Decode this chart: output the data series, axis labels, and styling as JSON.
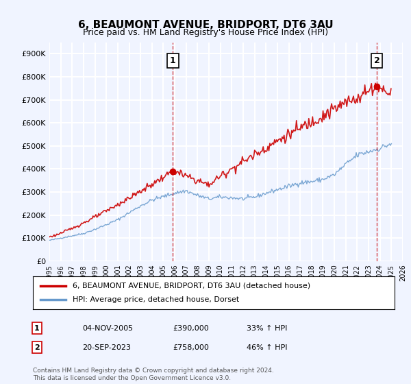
{
  "title": "6, BEAUMONT AVENUE, BRIDPORT, DT6 3AU",
  "subtitle": "Price paid vs. HM Land Registry's House Price Index (HPI)",
  "red_label": "6, BEAUMONT AVENUE, BRIDPORT, DT6 3AU (detached house)",
  "blue_label": "HPI: Average price, detached house, Dorset",
  "transaction1_label": "1",
  "transaction1_date": "04-NOV-2005",
  "transaction1_price": "£390,000",
  "transaction1_hpi": "33% ↑ HPI",
  "transaction2_label": "2",
  "transaction2_date": "20-SEP-2023",
  "transaction2_price": "£758,000",
  "transaction2_hpi": "46% ↑ HPI",
  "footer": "Contains HM Land Registry data © Crown copyright and database right 2024.\nThis data is licensed under the Open Government Licence v3.0.",
  "ylim": [
    0,
    950000
  ],
  "yticks": [
    0,
    100000,
    200000,
    300000,
    400000,
    500000,
    600000,
    700000,
    800000,
    900000
  ],
  "ytick_labels": [
    "£0",
    "£100K",
    "£200K",
    "£300K",
    "£400K",
    "£500K",
    "£600K",
    "£700K",
    "£800K",
    "£900K"
  ],
  "background_color": "#f0f4ff",
  "plot_bg_color": "#f0f4ff",
  "grid_color": "#ffffff",
  "red_color": "#cc0000",
  "blue_color": "#6699cc",
  "transaction1_x": 2005.84,
  "transaction1_y": 390000,
  "transaction2_x": 2023.72,
  "transaction2_y": 758000,
  "xmin": 1995,
  "xmax": 2026
}
